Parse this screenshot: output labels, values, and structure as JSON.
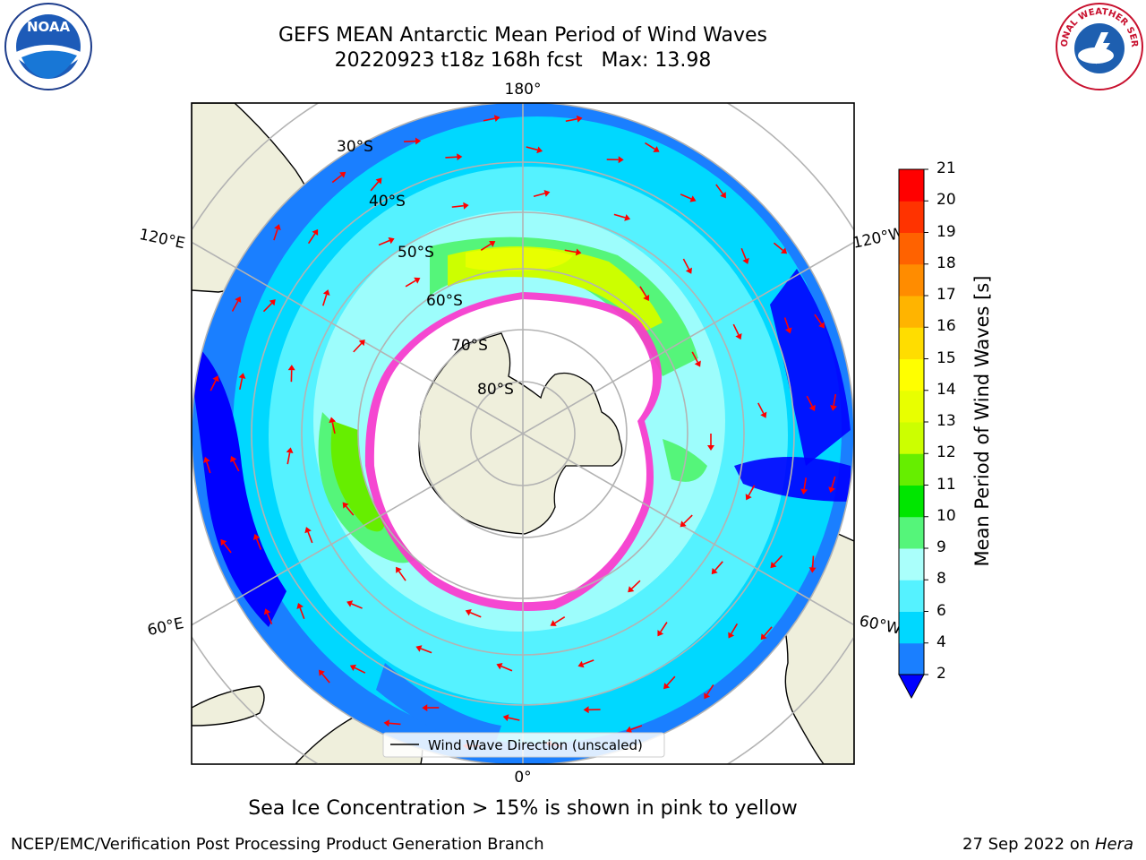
{
  "header": {
    "title_line1": "GEFS MEAN Antarctic Mean Period of Wind Waves",
    "title_line2": "20220923 t18z 168h fcst   Max: 13.98"
  },
  "logos": {
    "left": "NOAA",
    "right": "NATIONAL WEATHER SERVICE"
  },
  "map": {
    "lon_labels": {
      "top": "180°",
      "bottom": "0°",
      "left_upper": "120°E",
      "left_lower": "60°E",
      "right_upper": "120°W",
      "right_lower": "60°W"
    },
    "lat_labels": [
      "30°S",
      "40°S",
      "50°S",
      "60°S",
      "70°S",
      "80°S"
    ],
    "legend": "Wind Wave Direction (unscaled)"
  },
  "colorbar": {
    "title": "Mean Period of Wind Waves [s]",
    "ticks": [
      "2",
      "4",
      "6",
      "8",
      "9",
      "10",
      "11",
      "12",
      "13",
      "14",
      "15",
      "16",
      "17",
      "18",
      "19",
      "20",
      "21"
    ],
    "colors": [
      "#1a7fff",
      "#00d8ff",
      "#55f2ff",
      "#aafffb",
      "#55f57a",
      "#00e600",
      "#66ee00",
      "#ccff00",
      "#e8ff00",
      "#ffff00",
      "#ffdd00",
      "#ffb400",
      "#ff8c00",
      "#ff6200",
      "#ff3300",
      "#ff0000"
    ],
    "under_color": "#0000ff"
  },
  "note": "Sea Ice Concentration > 15% is shown in pink to yellow",
  "footer": {
    "left": "NCEP/EMC/Verification Post Processing Product Generation Branch",
    "right_prefix": "27 Sep 2022 on ",
    "right_host": "Hera"
  }
}
